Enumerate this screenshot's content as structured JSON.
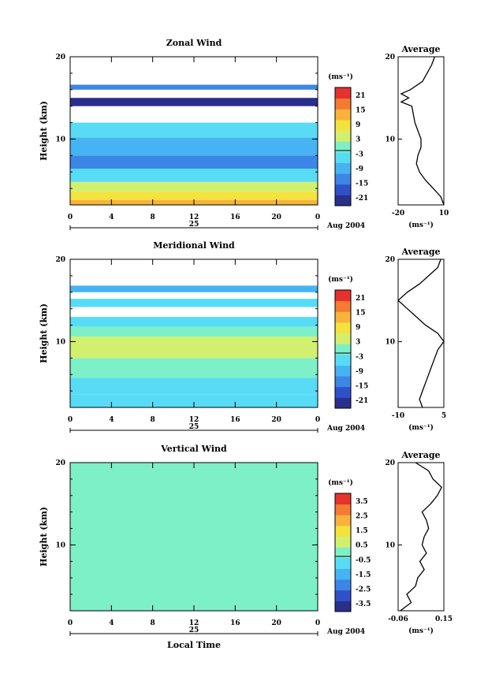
{
  "chart_data": [
    {
      "type": "heatmap",
      "title": "Zonal Wind",
      "ylabel": "Height (km)",
      "ylim": [
        2,
        20
      ],
      "yticks": [
        "20",
        "10"
      ],
      "xlim": [
        0,
        24
      ],
      "xticks": [
        "0",
        "4",
        "8",
        "12",
        "16",
        "20",
        "0"
      ],
      "date_label": "25",
      "month_label": "Aug 2004",
      "colorbar": {
        "unit": "(ms⁻¹)",
        "ticks": [
          "21",
          "15",
          "9",
          "3",
          "-3",
          "-9",
          "-15",
          "-21"
        ],
        "range": [
          -24,
          24
        ]
      },
      "bands": [
        {
          "h0": 2.0,
          "h1": 2.6,
          "v": 14
        },
        {
          "h0": 2.6,
          "h1": 3.6,
          "v": 10
        },
        {
          "h0": 3.6,
          "h1": 4.8,
          "v": 3
        },
        {
          "h0": 4.8,
          "h1": 6.4,
          "v": -5
        },
        {
          "h0": 6.4,
          "h1": 8.0,
          "v": -13
        },
        {
          "h0": 8.0,
          "h1": 10.2,
          "v": -9
        },
        {
          "h0": 10.2,
          "h1": 12.0,
          "v": -6
        },
        {
          "h0": 14.0,
          "h1": 15.0,
          "v": -22
        },
        {
          "h0": 16.0,
          "h1": 16.6,
          "v": -16
        }
      ],
      "profile": {
        "title": "Average",
        "xlabel": "(ms⁻¹)",
        "xlim": [
          -20,
          10
        ],
        "xticks": [
          "-20",
          "10"
        ],
        "yticks": [
          "20",
          "10"
        ],
        "height": [
          2,
          3,
          4,
          5,
          6,
          7,
          8,
          9,
          10,
          11,
          12,
          13,
          14,
          14.5,
          15,
          15.5,
          16,
          17,
          18,
          19,
          20
        ],
        "value": [
          10,
          8,
          3,
          -2,
          -6,
          -8,
          -7,
          -5,
          -5,
          -7,
          -9,
          -10,
          -11,
          -18,
          -13,
          -18,
          -12,
          -4,
          -1,
          2,
          4
        ]
      }
    },
    {
      "type": "heatmap",
      "title": "Meridional Wind",
      "ylabel": "Height (km)",
      "ylim": [
        2,
        20
      ],
      "yticks": [
        "20",
        "10"
      ],
      "xlim": [
        0,
        24
      ],
      "xticks": [
        "0",
        "4",
        "8",
        "12",
        "16",
        "20",
        "0"
      ],
      "date_label": "25",
      "month_label": "Aug 2004",
      "colorbar": {
        "unit": "(ms⁻¹)",
        "ticks": [
          "21",
          "15",
          "9",
          "3",
          "-3",
          "-9",
          "-15",
          "-21"
        ],
        "range": [
          -24,
          24
        ]
      },
      "bands": [
        {
          "h0": 2.0,
          "h1": 3.6,
          "v": -7
        },
        {
          "h0": 3.6,
          "h1": 5.6,
          "v": -3
        },
        {
          "h0": 5.6,
          "h1": 8.0,
          "v": 1
        },
        {
          "h0": 8.0,
          "h1": 10.6,
          "v": 6
        },
        {
          "h0": 10.6,
          "h1": 11.8,
          "v": 0
        },
        {
          "h0": 11.8,
          "h1": 13.0,
          "v": -3
        },
        {
          "h0": 14.2,
          "h1": 15.2,
          "v": -5
        },
        {
          "h0": 16.0,
          "h1": 16.8,
          "v": -8
        }
      ],
      "profile": {
        "title": "Average",
        "xlabel": "(ms⁻¹)",
        "xlim": [
          -10,
          5
        ],
        "xticks": [
          "-10",
          "5"
        ],
        "yticks": [
          "20",
          "10"
        ],
        "height": [
          2,
          3,
          4,
          5,
          6,
          7,
          8,
          9,
          10,
          11,
          12,
          13,
          14,
          15,
          16,
          17,
          18,
          19,
          20
        ],
        "value": [
          -2,
          -3,
          -2,
          -1,
          0,
          1,
          2,
          3,
          5,
          3,
          -1,
          -4,
          -7,
          -10,
          -7,
          -3,
          0,
          3,
          4
        ]
      }
    },
    {
      "type": "heatmap",
      "title": "Vertical Wind",
      "ylabel": "Height (km)",
      "xlabel": "Local Time",
      "ylim": [
        2,
        20
      ],
      "yticks": [
        "20",
        "10"
      ],
      "xlim": [
        0,
        24
      ],
      "xticks": [
        "0",
        "4",
        "8",
        "12",
        "16",
        "20",
        "0"
      ],
      "date_label": "25",
      "month_label": "Aug 2004",
      "colorbar": {
        "unit": "(ms⁻¹)",
        "ticks": [
          "3.5",
          "2.5",
          "1.5",
          "0.5",
          "-0.5",
          "-1.5",
          "-2.5",
          "-3.5"
        ],
        "range": [
          -4,
          4
        ]
      },
      "bands": [
        {
          "h0": 2.0,
          "h1": 20.0,
          "v": 0
        }
      ],
      "profile": {
        "title": "Average",
        "xlabel": "(ms⁻¹)",
        "xlim": [
          -0.06,
          0.15
        ],
        "xticks": [
          "-0.06",
          "0.15"
        ],
        "yticks": [
          "20",
          "10"
        ],
        "height": [
          2,
          3,
          4,
          5,
          6,
          7,
          8,
          9,
          10,
          11,
          12,
          13,
          14,
          15,
          16,
          17,
          18,
          19,
          20
        ],
        "value": [
          -0.05,
          0.0,
          -0.02,
          0.02,
          0.03,
          0.06,
          0.04,
          0.07,
          0.05,
          0.06,
          0.08,
          0.07,
          0.05,
          0.09,
          0.12,
          0.14,
          0.1,
          0.08,
          0.02
        ]
      }
    }
  ]
}
